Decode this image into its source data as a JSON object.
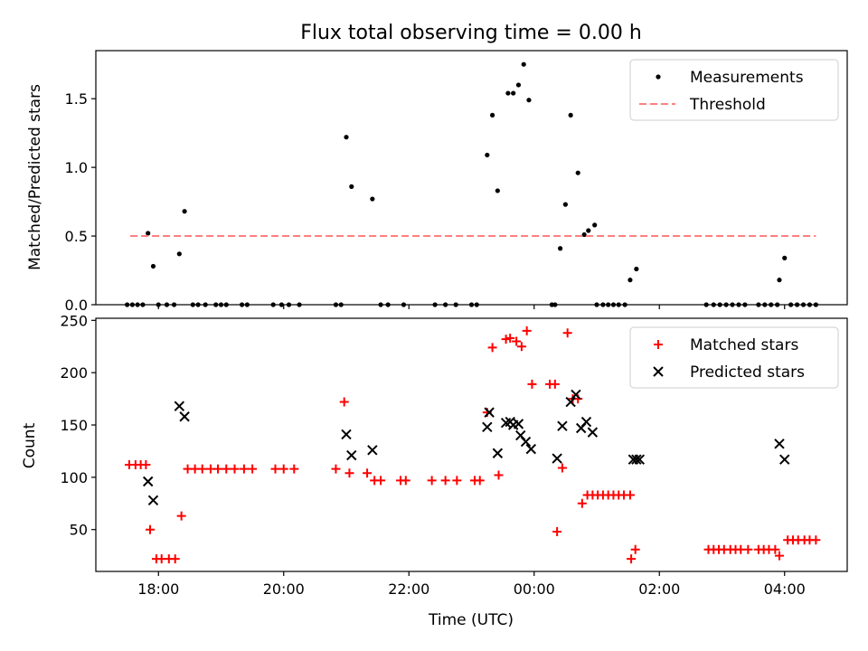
{
  "title": "Flux total observing time = 0.00 h",
  "chart_data": [
    {
      "type": "scatter",
      "ylabel": "Matched/Predicted stars",
      "xlim": [
        "17:00",
        "05:00"
      ],
      "ylim": [
        0,
        1.85
      ],
      "yticks": [
        "0.0",
        "0.5",
        "1.0",
        "1.5"
      ],
      "legend_position": "top-right",
      "series": [
        {
          "name": "Measurements",
          "color": "#000000",
          "marker": "dot",
          "points": [
            [
              "17:30",
              0
            ],
            [
              "17:35",
              0
            ],
            [
              "17:40",
              0
            ],
            [
              "17:45",
              0
            ],
            [
              "17:50",
              0.52
            ],
            [
              "17:55",
              0.28
            ],
            [
              "18:00",
              0
            ],
            [
              "18:08",
              0
            ],
            [
              "18:15",
              0
            ],
            [
              "18:20",
              0.37
            ],
            [
              "18:25",
              0.68
            ],
            [
              "18:33",
              0
            ],
            [
              "18:38",
              0
            ],
            [
              "18:45",
              0
            ],
            [
              "18:55",
              0
            ],
            [
              "19:00",
              0
            ],
            [
              "19:05",
              0
            ],
            [
              "19:20",
              0
            ],
            [
              "19:25",
              0
            ],
            [
              "19:50",
              0
            ],
            [
              "19:58",
              0
            ],
            [
              "20:05",
              0
            ],
            [
              "20:15",
              0
            ],
            [
              "20:50",
              0
            ],
            [
              "20:55",
              0
            ],
            [
              "21:00",
              1.22
            ],
            [
              "21:05",
              0.86
            ],
            [
              "21:25",
              0.77
            ],
            [
              "21:33",
              0
            ],
            [
              "21:40",
              0
            ],
            [
              "21:55",
              0
            ],
            [
              "22:25",
              0
            ],
            [
              "22:35",
              0
            ],
            [
              "22:45",
              0
            ],
            [
              "23:00",
              0
            ],
            [
              "23:05",
              0
            ],
            [
              "23:15",
              1.09
            ],
            [
              "23:20",
              1.38
            ],
            [
              "23:25",
              0.83
            ],
            [
              "23:35",
              1.54
            ],
            [
              "23:40",
              1.54
            ],
            [
              "23:45",
              1.6
            ],
            [
              "23:50",
              1.75
            ],
            [
              "23:55",
              1.49
            ],
            [
              "00:17",
              0
            ],
            [
              "00:20",
              0
            ],
            [
              "00:25",
              0.41
            ],
            [
              "00:30",
              0.73
            ],
            [
              "00:35",
              1.38
            ],
            [
              "00:42",
              0.96
            ],
            [
              "00:48",
              0.51
            ],
            [
              "00:52",
              0.54
            ],
            [
              "00:58",
              0.58
            ],
            [
              "01:00",
              0
            ],
            [
              "01:06",
              0
            ],
            [
              "01:11",
              0
            ],
            [
              "01:16",
              0
            ],
            [
              "01:21",
              0
            ],
            [
              "01:27",
              0
            ],
            [
              "01:32",
              0.18
            ],
            [
              "01:38",
              0.26
            ],
            [
              "02:45",
              0
            ],
            [
              "02:52",
              0
            ],
            [
              "02:58",
              0
            ],
            [
              "03:04",
              0
            ],
            [
              "03:10",
              0
            ],
            [
              "03:16",
              0
            ],
            [
              "03:22",
              0
            ],
            [
              "03:35",
              0
            ],
            [
              "03:41",
              0
            ],
            [
              "03:47",
              0
            ],
            [
              "03:53",
              0
            ],
            [
              "03:55",
              0.18
            ],
            [
              "04:00",
              0.34
            ],
            [
              "04:06",
              0
            ],
            [
              "04:12",
              0
            ],
            [
              "04:18",
              0
            ],
            [
              "04:24",
              0
            ],
            [
              "04:30",
              0
            ]
          ]
        },
        {
          "name": "Threshold",
          "color": "#ff7f7f",
          "style": "dashed",
          "x": [
            "17:33",
            "04:30"
          ],
          "y": [
            0.5,
            0.5
          ]
        }
      ]
    },
    {
      "type": "scatter",
      "xlabel": "Time (UTC)",
      "ylabel": "Count",
      "xlim": [
        "17:00",
        "05:00"
      ],
      "ylim": [
        10,
        252
      ],
      "xticks": [
        "18:00",
        "20:00",
        "22:00",
        "00:00",
        "02:00",
        "04:00"
      ],
      "yticks": [
        "50",
        "100",
        "150",
        "200",
        "250"
      ],
      "legend_position": "top-right",
      "series": [
        {
          "name": "Matched stars",
          "color": "#ff0000",
          "marker": "plus",
          "points": [
            [
              "17:32",
              112
            ],
            [
              "17:38",
              112
            ],
            [
              "17:43",
              112
            ],
            [
              "17:48",
              112
            ],
            [
              "17:52",
              50
            ],
            [
              "17:58",
              22
            ],
            [
              "18:03",
              22
            ],
            [
              "18:10",
              22
            ],
            [
              "18:16",
              22
            ],
            [
              "18:22",
              63
            ],
            [
              "18:28",
              108
            ],
            [
              "18:35",
              108
            ],
            [
              "18:42",
              108
            ],
            [
              "18:50",
              108
            ],
            [
              "18:57",
              108
            ],
            [
              "19:05",
              108
            ],
            [
              "19:13",
              108
            ],
            [
              "19:22",
              108
            ],
            [
              "19:30",
              108
            ],
            [
              "19:52",
              108
            ],
            [
              "20:00",
              108
            ],
            [
              "20:10",
              108
            ],
            [
              "20:50",
              108
            ],
            [
              "20:58",
              172
            ],
            [
              "21:03",
              104
            ],
            [
              "21:20",
              104
            ],
            [
              "21:27",
              97
            ],
            [
              "21:33",
              97
            ],
            [
              "21:52",
              97
            ],
            [
              "21:57",
              97
            ],
            [
              "22:22",
              97
            ],
            [
              "22:35",
              97
            ],
            [
              "22:46",
              97
            ],
            [
              "23:03",
              97
            ],
            [
              "23:08",
              97
            ],
            [
              "23:15",
              162
            ],
            [
              "23:20",
              224
            ],
            [
              "23:26",
              102
            ],
            [
              "23:33",
              232
            ],
            [
              "23:37",
              233
            ],
            [
              "23:43",
              230
            ],
            [
              "23:48",
              225
            ],
            [
              "23:53",
              240
            ],
            [
              "23:58",
              189
            ],
            [
              "00:15",
              189
            ],
            [
              "00:20",
              189
            ],
            [
              "00:22",
              48
            ],
            [
              "00:27",
              109
            ],
            [
              "00:32",
              238
            ],
            [
              "00:37",
              175
            ],
            [
              "00:42",
              175
            ],
            [
              "00:46",
              75
            ],
            [
              "00:51",
              83
            ],
            [
              "00:56",
              83
            ],
            [
              "01:01",
              83
            ],
            [
              "01:06",
              83
            ],
            [
              "01:11",
              83
            ],
            [
              "01:16",
              83
            ],
            [
              "01:21",
              83
            ],
            [
              "01:26",
              83
            ],
            [
              "01:32",
              83
            ],
            [
              "01:33",
              22
            ],
            [
              "01:37",
              31
            ],
            [
              "02:47",
              31
            ],
            [
              "02:52",
              31
            ],
            [
              "02:57",
              31
            ],
            [
              "03:02",
              31
            ],
            [
              "03:08",
              31
            ],
            [
              "03:13",
              31
            ],
            [
              "03:18",
              31
            ],
            [
              "03:25",
              31
            ],
            [
              "03:35",
              31
            ],
            [
              "03:40",
              31
            ],
            [
              "03:45",
              31
            ],
            [
              "03:51",
              31
            ],
            [
              "03:55",
              25
            ],
            [
              "04:03",
              40
            ],
            [
              "04:08",
              40
            ],
            [
              "04:13",
              40
            ],
            [
              "04:19",
              40
            ],
            [
              "04:24",
              40
            ],
            [
              "04:30",
              40
            ]
          ]
        },
        {
          "name": "Predicted stars",
          "color": "#000000",
          "marker": "x",
          "points": [
            [
              "17:50",
              96
            ],
            [
              "17:55",
              78
            ],
            [
              "18:20",
              168
            ],
            [
              "18:25",
              158
            ],
            [
              "21:00",
              141
            ],
            [
              "21:05",
              121
            ],
            [
              "21:25",
              126
            ],
            [
              "23:15",
              148
            ],
            [
              "23:17",
              162
            ],
            [
              "23:25",
              123
            ],
            [
              "23:33",
              152
            ],
            [
              "23:37",
              153
            ],
            [
              "23:40",
              150
            ],
            [
              "23:45",
              151
            ],
            [
              "23:47",
              140
            ],
            [
              "23:52",
              134
            ],
            [
              "23:57",
              127
            ],
            [
              "00:22",
              118
            ],
            [
              "00:27",
              149
            ],
            [
              "00:35",
              172
            ],
            [
              "00:40",
              179
            ],
            [
              "00:45",
              147
            ],
            [
              "00:50",
              153
            ],
            [
              "00:56",
              143
            ],
            [
              "01:35",
              117
            ],
            [
              "01:38",
              117
            ],
            [
              "01:41",
              117
            ],
            [
              "03:55",
              132
            ],
            [
              "04:00",
              117
            ]
          ]
        }
      ]
    }
  ]
}
